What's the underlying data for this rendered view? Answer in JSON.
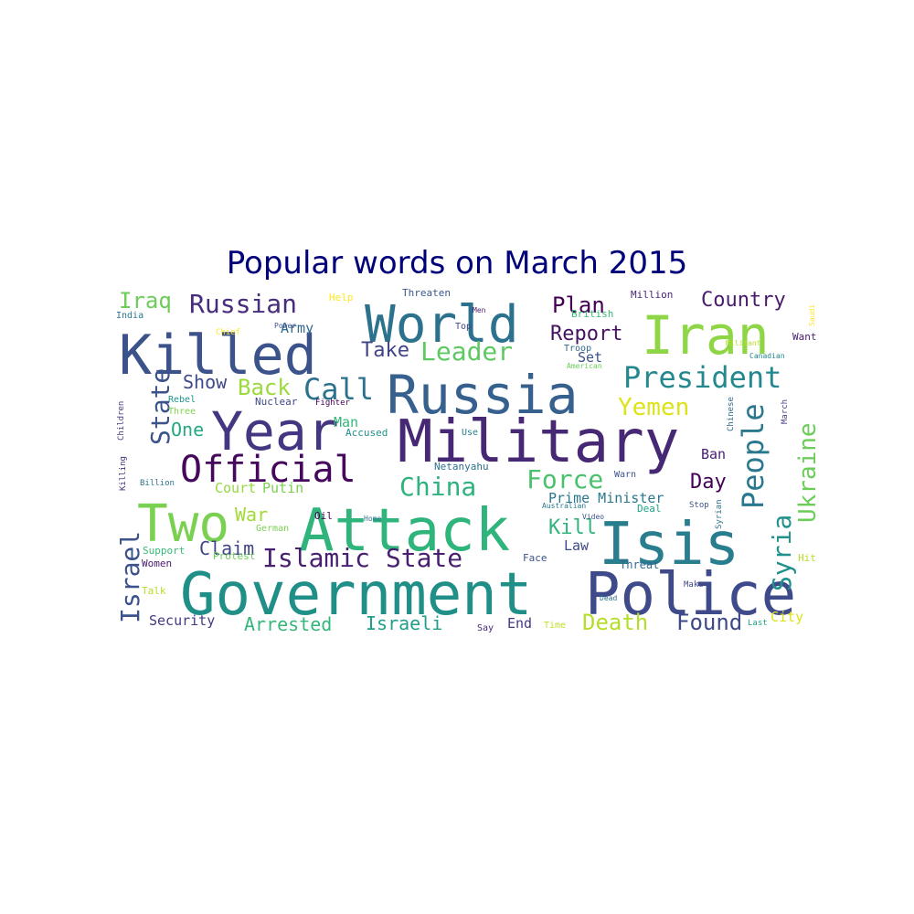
{
  "title": "Popular words on March 2015",
  "words": [
    {
      "text": "Government",
      "color": "#1f8f88"
    },
    {
      "text": "Military",
      "color": "#472874"
    },
    {
      "text": "Attack",
      "color": "#2fb47c"
    },
    {
      "text": "Police",
      "color": "#3e4a89"
    },
    {
      "text": "Russia",
      "color": "#36608d"
    },
    {
      "text": "Year",
      "color": "#453681"
    },
    {
      "text": "Killed",
      "color": "#3b528b"
    },
    {
      "text": "World",
      "color": "#2c728e"
    },
    {
      "text": "Iran",
      "color": "#8ed645"
    },
    {
      "text": "Two",
      "color": "#7ad151"
    },
    {
      "text": "Isis",
      "color": "#287d8e"
    },
    {
      "text": "Official",
      "color": "#46085c"
    },
    {
      "text": "Islamic State",
      "color": "#481f71"
    },
    {
      "text": "President",
      "color": "#23898e"
    },
    {
      "text": "Russian",
      "color": "#472d7b"
    },
    {
      "text": "Call",
      "color": "#2c728e"
    },
    {
      "text": "Leader",
      "color": "#5ec962"
    },
    {
      "text": "People",
      "color": "#2a788e"
    },
    {
      "text": "State",
      "color": "#3b528b"
    },
    {
      "text": "Force",
      "color": "#4ac16d"
    },
    {
      "text": "China",
      "color": "#2eb37c"
    },
    {
      "text": "Yemen",
      "color": "#dde318"
    },
    {
      "text": "Ukraine",
      "color": "#6ccd5a"
    },
    {
      "text": "Syria",
      "color": "#21918c"
    },
    {
      "text": "Country",
      "color": "#481b6d"
    },
    {
      "text": "Iraq",
      "color": "#6ccd5a"
    },
    {
      "text": "Plan",
      "color": "#440154"
    },
    {
      "text": "Report",
      "color": "#471164"
    },
    {
      "text": "Take",
      "color": "#414487"
    },
    {
      "text": "Back",
      "color": "#9bd93c"
    },
    {
      "text": "Show",
      "color": "#3e4989"
    },
    {
      "text": "One",
      "color": "#22a884"
    },
    {
      "text": "Israel",
      "color": "#3b528b"
    },
    {
      "text": "Kill",
      "color": "#2fb47c"
    },
    {
      "text": "Day",
      "color": "#440154"
    },
    {
      "text": "Death",
      "color": "#b5de2b"
    },
    {
      "text": "Found",
      "color": "#3e4989"
    },
    {
      "text": "Arrested",
      "color": "#35b779"
    },
    {
      "text": "Israeli",
      "color": "#1f9e89"
    },
    {
      "text": "Claim",
      "color": "#414487"
    },
    {
      "text": "War",
      "color": "#a2da37"
    },
    {
      "text": "Court",
      "color": "#95d840"
    },
    {
      "text": "Putin",
      "color": "#7ad151"
    },
    {
      "text": "Prime Minister",
      "color": "#2a788e"
    },
    {
      "text": "Security",
      "color": "#443983"
    },
    {
      "text": "Army",
      "color": "#31688e"
    },
    {
      "text": "Man",
      "color": "#35b779"
    },
    {
      "text": "Law",
      "color": "#3e4a89"
    },
    {
      "text": "Ban",
      "color": "#482173"
    },
    {
      "text": "Set",
      "color": "#3b528b"
    },
    {
      "text": "End",
      "color": "#453882"
    },
    {
      "text": "City",
      "color": "#dde318"
    },
    {
      "text": "Million",
      "color": "#482475"
    },
    {
      "text": "Threaten",
      "color": "#38588c"
    },
    {
      "text": "Help",
      "color": "#fde725"
    },
    {
      "text": "India",
      "color": "#2a788e"
    },
    {
      "text": "British",
      "color": "#3aba76"
    },
    {
      "text": "Troop",
      "color": "#31688e"
    },
    {
      "text": "Nuclear",
      "color": "#3e4989"
    },
    {
      "text": "Fighter",
      "color": "#440154"
    },
    {
      "text": "Rebel",
      "color": "#20928c"
    },
    {
      "text": "Three",
      "color": "#7fd34e"
    },
    {
      "text": "Children",
      "color": "#433e85"
    },
    {
      "text": "Killing",
      "color": "#46307e"
    },
    {
      "text": "Billion",
      "color": "#2c728e"
    },
    {
      "text": "Accused",
      "color": "#21918c"
    },
    {
      "text": "Use",
      "color": "#26828e"
    },
    {
      "text": "Oil",
      "color": "#440154"
    },
    {
      "text": "Netanyahu",
      "color": "#2c728e"
    },
    {
      "text": "Warn",
      "color": "#3b528b"
    },
    {
      "text": "Deal",
      "color": "#20a386"
    },
    {
      "text": "Stop",
      "color": "#3b528b"
    },
    {
      "text": "Syrian",
      "color": "#2c728e"
    },
    {
      "text": "Chinese",
      "color": "#31688e"
    },
    {
      "text": "March",
      "color": "#433e85"
    },
    {
      "text": "Want",
      "color": "#481b6d"
    },
    {
      "text": "Hit",
      "color": "#b5de2b"
    },
    {
      "text": "Face",
      "color": "#3b528b"
    },
    {
      "text": "Threat",
      "color": "#31688e"
    },
    {
      "text": "Make",
      "color": "#3e4989"
    },
    {
      "text": "Dead",
      "color": "#2c728e"
    },
    {
      "text": "Time",
      "color": "#c0df25"
    },
    {
      "text": "Last",
      "color": "#20a386"
    },
    {
      "text": "Say",
      "color": "#482878"
    },
    {
      "text": "Home",
      "color": "#2c728e"
    },
    {
      "text": "German",
      "color": "#7ad151"
    },
    {
      "text": "Support",
      "color": "#3aba76"
    },
    {
      "text": "Protest",
      "color": "#6ccd5a"
    },
    {
      "text": "Women",
      "color": "#481b6d"
    },
    {
      "text": "Talk",
      "color": "#b5de2b"
    },
    {
      "text": "Australian",
      "color": "#2a788e"
    },
    {
      "text": "Video",
      "color": "#3b528b"
    },
    {
      "text": "Canadian",
      "color": "#23898e"
    },
    {
      "text": "Militant",
      "color": "#b5de2b"
    },
    {
      "text": "American",
      "color": "#6ccd5a"
    },
    {
      "text": "Saudi",
      "color": "#fde725"
    },
    {
      "text": "Chief",
      "color": "#fde725"
    },
    {
      "text": "Power",
      "color": "#3b528b"
    },
    {
      "text": "Top",
      "color": "#3e4989"
    },
    {
      "text": "Men",
      "color": "#481b6d"
    }
  ]
}
